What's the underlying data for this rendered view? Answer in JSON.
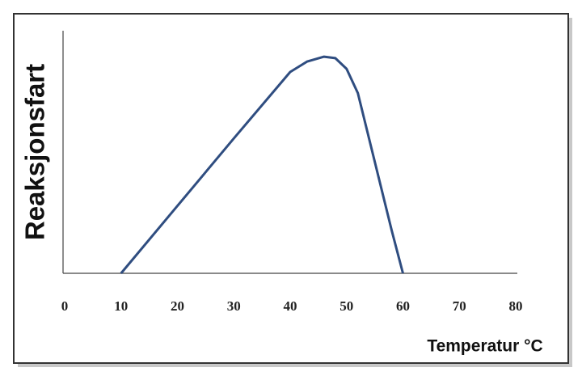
{
  "chart_data": {
    "type": "line",
    "x_label": "Temperatur °C",
    "y_label": "Reaksjonsfart",
    "x": [
      10,
      20,
      30,
      40,
      43,
      46,
      48,
      50,
      52,
      55,
      58,
      60
    ],
    "series": [
      {
        "name": "Reaksjonsfart",
        "color": "#2f4d80",
        "values": [
          0,
          27.8,
          55.6,
          83,
          87.3,
          89.3,
          88.7,
          84.3,
          74.3,
          46,
          17.7,
          0
        ]
      }
    ],
    "xlim": [
      0,
      80
    ],
    "xticks": [
      0,
      10,
      20,
      30,
      40,
      50,
      60,
      70,
      80
    ],
    "ylim": [
      0,
      100
    ],
    "grid": false
  }
}
